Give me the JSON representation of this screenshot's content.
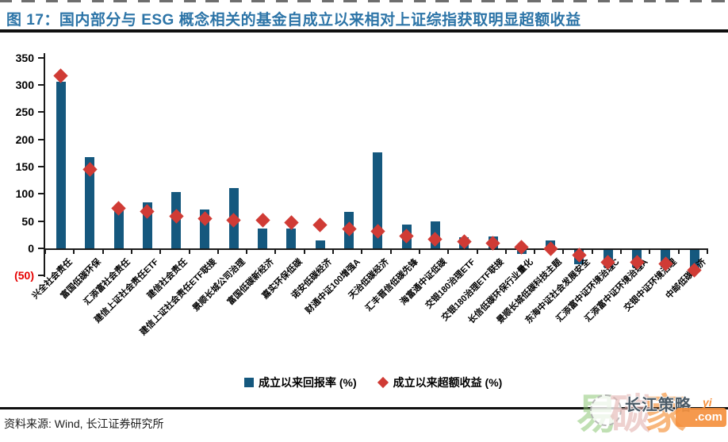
{
  "title": "图 17：国内部分与 ESG 概念相关的基金自成立以来相对上证综指获取明显超额收益",
  "source": "资料来源: Wind, 长江证券研究所",
  "legend": {
    "return_label": "成立以来回报率 (%)",
    "excess_label": "成立以来超额收益 (%)"
  },
  "watermark": {
    "char1": "易",
    "char2": "碳",
    "char3": "家",
    "overlay_text": "长江策略",
    "yi": "yi",
    "badge": ".com"
  },
  "colors": {
    "bar": "#15587e",
    "diamond": "#d03b35",
    "title_blue": "#2c74a7",
    "negative_tick": "#e60000",
    "axis": "#1a1a1a"
  },
  "chart_data": {
    "type": "bar",
    "title": "图 17：国内部分与 ESG 概念相关的基金自成立以来相对上证综指获取明显超额收益",
    "categories": [
      "兴全社会责任",
      "富国低碳环保",
      "汇添富社会责任",
      "建信上证社会责任ETF",
      "建信社会责任",
      "建信上证社会责任ETF联接",
      "景顺长城公司治理",
      "富国低碳新经济",
      "嘉实环保低碳",
      "诺安低碳经济",
      "财通中证100增强A",
      "天治低碳经济",
      "汇丰晋信低碳先锋",
      "海富通中证低碳",
      "交银180治理ETF",
      "交银180治理ETF联接",
      "长信低碳环保行业量化",
      "景顺长城低碳科技主题",
      "东海中证社会发展安全",
      "汇添富中证环境治理C",
      "汇添富中证环境治理A",
      "交银中证环境治理",
      "中邮低碳经济"
    ],
    "series": [
      {
        "name": "成立以来回报率 (%)",
        "type": "bar",
        "values": [
          305,
          167,
          70,
          85,
          103,
          71,
          110,
          37,
          36,
          15,
          67,
          176,
          44,
          49,
          20,
          22,
          -7,
          14,
          -26,
          -32,
          -32,
          -32,
          -34
        ]
      },
      {
        "name": "成立以来超额收益 (%)",
        "type": "scatter",
        "marker": "diamond",
        "values": [
          317,
          145,
          73,
          68,
          59,
          55,
          52,
          51,
          48,
          43,
          35,
          31,
          22,
          17,
          12,
          10,
          2,
          0,
          -12,
          -25,
          -25,
          -28,
          -40
        ]
      }
    ],
    "xlabel": "",
    "ylabel": "",
    "ylim": [
      -50,
      350
    ],
    "ytick_step": 50,
    "ytick_labels": [
      "350",
      "300",
      "250",
      "200",
      "150",
      "100",
      "50",
      "0",
      "(50)"
    ],
    "grid": false,
    "legend_position": "bottom"
  }
}
